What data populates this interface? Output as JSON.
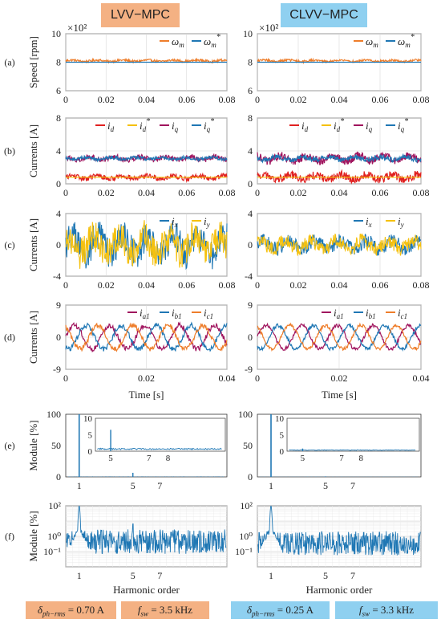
{
  "headers": {
    "left": {
      "label": "LVV−MPC",
      "color": "#f4b183"
    },
    "right": {
      "label": "CLVV−MPC",
      "color": "#8fd0f0"
    }
  },
  "footer": [
    {
      "sym": "δ",
      "sub": "ph−rms",
      "eq": "= 0.70  A",
      "color": "#f4b183"
    },
    {
      "sym": "f",
      "sub": "sw",
      "eq": "= 3.5 kHz",
      "color": "#f4b183"
    },
    {
      "sym": "δ",
      "sub": "ph−rms",
      "eq": "= 0.25  A",
      "color": "#8fd0f0"
    },
    {
      "sym": "f",
      "sub": "sw",
      "eq": "= 3.3 kHz",
      "color": "#8fd0f0"
    }
  ],
  "colors": {
    "orange": "#ee7d2a",
    "blue": "#1f77b4",
    "red": "#e02020",
    "yellow": "#f5c10f",
    "purple": "#a0145e"
  },
  "chart_data": [
    {
      "id": "a",
      "row_label": "(a)",
      "type": "line",
      "ylabel": "Speed [rpm]",
      "xlabel": "",
      "multiplier": "×10²",
      "xlim": [
        0,
        0.08
      ],
      "ylim": [
        6,
        10
      ],
      "xticks": [
        "0",
        "0.02",
        "0.04",
        "0.06",
        "0.08"
      ],
      "yticks": [
        "6",
        "8",
        "10"
      ],
      "legend": [
        "ωm",
        "ωm*"
      ],
      "series": [
        {
          "name": "ωm",
          "color": "orange",
          "left": {
            "mean": 8.1,
            "noise": 0.08
          },
          "right": {
            "mean": 8.1,
            "noise": 0.08
          }
        },
        {
          "name": "ωm*",
          "color": "blue",
          "left": {
            "mean": 8.0,
            "noise": 0.0
          },
          "right": {
            "mean": 8.0,
            "noise": 0.0
          }
        }
      ]
    },
    {
      "id": "b",
      "row_label": "(b)",
      "type": "line",
      "ylabel": "Currents [A]",
      "xlabel": "",
      "xlim": [
        0,
        0.08
      ],
      "ylim": [
        0,
        8
      ],
      "xticks": [
        "0",
        "0.02",
        "0.04",
        "0.06",
        "0.08"
      ],
      "yticks": [
        "0",
        "4",
        "8"
      ],
      "legend": [
        "id",
        "id*",
        "iq",
        "iq*"
      ],
      "series": [
        {
          "name": "id",
          "color": "red",
          "left": {
            "mean": 0.8,
            "noise": 0.3
          },
          "right": {
            "mean": 0.8,
            "noise": 0.5
          }
        },
        {
          "name": "id*",
          "color": "yellow",
          "left": {
            "mean": 0.8,
            "noise": 0.0
          },
          "right": {
            "mean": 0.8,
            "noise": 0.0
          }
        },
        {
          "name": "iq",
          "color": "purple",
          "left": {
            "mean": 3.1,
            "noise": 0.3
          },
          "right": {
            "mean": 3.1,
            "noise": 0.5
          }
        },
        {
          "name": "iq*",
          "color": "blue",
          "left": {
            "mean": 3.1,
            "noise": 0.2
          },
          "right": {
            "mean": 3.1,
            "noise": 0.3
          }
        }
      ]
    },
    {
      "id": "c",
      "row_label": "(c)",
      "type": "line",
      "ylabel": "Currents [A]",
      "xlabel": "",
      "xlim": [
        0,
        0.08
      ],
      "ylim": [
        -4,
        4
      ],
      "xticks": [
        "0",
        "0.02",
        "0.04",
        "0.06",
        "0.08"
      ],
      "yticks": [
        "-4",
        "0",
        "4"
      ],
      "legend": [
        "ix",
        "iy"
      ],
      "series": [
        {
          "name": "ix",
          "color": "blue",
          "left": {
            "mean": 0,
            "noise": 2.0
          },
          "right": {
            "mean": 0,
            "noise": 0.9
          }
        },
        {
          "name": "iy",
          "color": "yellow",
          "left": {
            "mean": 0,
            "noise": 2.0
          },
          "right": {
            "mean": 0,
            "noise": 0.9
          }
        }
      ]
    },
    {
      "id": "d",
      "row_label": "(d)",
      "type": "line",
      "ylabel": "Currents [A]",
      "xlabel": "Time [s]",
      "xlim": [
        0,
        0.04
      ],
      "ylim": [
        -9,
        9
      ],
      "xticks": [
        "0",
        "0.02",
        "0.04"
      ],
      "yticks": [
        "-9",
        "0",
        "9"
      ],
      "legend": [
        "ia1",
        "ib1",
        "ic1"
      ],
      "series": [
        {
          "name": "ia1",
          "color": "purple",
          "amp": 3.3,
          "phase": 0,
          "left": {
            "noise": 0.7
          },
          "right": {
            "noise": 0.5
          }
        },
        {
          "name": "ib1",
          "color": "blue",
          "amp": 3.3,
          "phase": -2.094,
          "left": {
            "noise": 0.7
          },
          "right": {
            "noise": 0.5
          }
        },
        {
          "name": "ic1",
          "color": "orange",
          "amp": 3.3,
          "phase": 2.094,
          "left": {
            "noise": 0.7
          },
          "right": {
            "noise": 0.5
          }
        }
      ]
    },
    {
      "id": "e",
      "row_label": "(e)",
      "type": "bar",
      "ylabel": "Module [%]",
      "xlabel": "",
      "ylim": [
        0,
        100
      ],
      "yticks": [
        "0",
        "50",
        "100"
      ],
      "xticks": [
        "1",
        "5",
        "7"
      ],
      "fundamental": 100,
      "left": {
        "h5": 6.5,
        "floor": 0.8
      },
      "right": {
        "h5": 0.8,
        "floor": 0.4
      },
      "inset": {
        "ylim": [
          0,
          10
        ],
        "yticks": [
          "0",
          "5",
          "10"
        ],
        "xticks": [
          "5",
          "7",
          "8"
        ]
      }
    },
    {
      "id": "f",
      "row_label": "(f)",
      "type": "line",
      "ylabel": "Module [%]",
      "xlabel": "Harmonic order",
      "log": true,
      "ylim": [
        0.01,
        100
      ],
      "yticks": [
        "10²",
        "10⁰",
        "10⁻¹"
      ],
      "xticks": [
        "1",
        "5",
        "7"
      ],
      "fundamental": 100,
      "left": {
        "floor": 0.45,
        "h5": 6.5
      },
      "right": {
        "floor": 0.35,
        "h5": 0.8
      }
    }
  ]
}
